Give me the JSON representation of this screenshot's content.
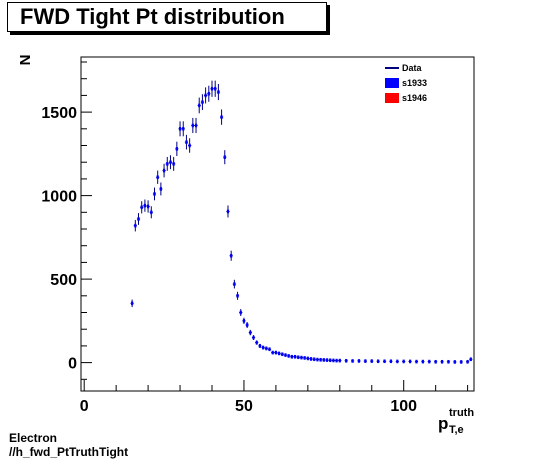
{
  "chart_data": {
    "type": "scatter",
    "title": "FWD Tight Pt distribution",
    "xlabel": {
      "main": "p",
      "sup": "truth",
      "sub": "T,e"
    },
    "ylabel": "N",
    "xlim": [
      -1,
      122
    ],
    "ylim": [
      -170,
      1830
    ],
    "x_ticks": [
      0,
      50,
      100
    ],
    "x_tick_labels": [
      "0",
      "50",
      "100"
    ],
    "y_ticks": [
      0,
      500,
      1000,
      1500
    ],
    "y_tick_labels": [
      "0",
      "500",
      "1000",
      "1500"
    ],
    "grid": false,
    "legend_position": "top-right",
    "legend": [
      {
        "label": "Data",
        "symbol": "line",
        "color": "#000080"
      },
      {
        "label": "s1933",
        "symbol": "box",
        "color": "#0000ff"
      },
      {
        "label": "s1946",
        "symbol": "box",
        "color": "#ff0000"
      }
    ],
    "series": [
      {
        "name": "Data",
        "color": "#000080",
        "x": [
          15,
          16,
          17,
          18,
          19,
          20,
          21,
          22,
          23,
          24,
          25,
          26,
          27,
          28,
          29,
          30,
          31,
          32,
          33,
          34,
          35,
          36,
          37,
          38,
          39,
          40,
          41,
          42,
          43,
          44,
          45,
          46,
          47,
          48,
          49,
          50,
          51,
          52,
          53,
          54,
          55,
          56,
          57,
          58,
          59,
          60,
          61,
          62,
          63,
          64,
          65,
          66,
          67,
          68,
          69,
          70,
          71,
          72,
          73,
          74,
          75,
          76,
          77,
          78,
          79,
          80,
          82,
          84,
          86,
          88,
          90,
          92,
          94,
          96,
          98,
          100,
          102,
          104,
          106,
          108,
          110,
          112,
          114,
          116,
          118,
          120,
          121
        ],
        "y": [
          355,
          820,
          860,
          930,
          940,
          935,
          900,
          1010,
          1110,
          1040,
          1150,
          1190,
          1200,
          1190,
          1280,
          1400,
          1400,
          1320,
          1300,
          1420,
          1420,
          1540,
          1560,
          1600,
          1610,
          1640,
          1640,
          1620,
          1470,
          1230,
          905,
          640,
          470,
          400,
          300,
          250,
          225,
          180,
          150,
          120,
          100,
          90,
          85,
          80,
          60,
          60,
          55,
          50,
          45,
          40,
          35,
          35,
          32,
          30,
          28,
          25,
          22,
          20,
          18,
          17,
          16,
          15,
          14,
          13,
          12,
          12,
          11,
          10,
          10,
          9,
          9,
          8,
          8,
          8,
          7,
          7,
          7,
          6,
          6,
          6,
          5,
          5,
          5,
          4,
          4,
          5,
          20
        ]
      }
    ]
  },
  "footer": {
    "line1": "Electron",
    "line2": "//h_fwd_PtTruthTight"
  }
}
